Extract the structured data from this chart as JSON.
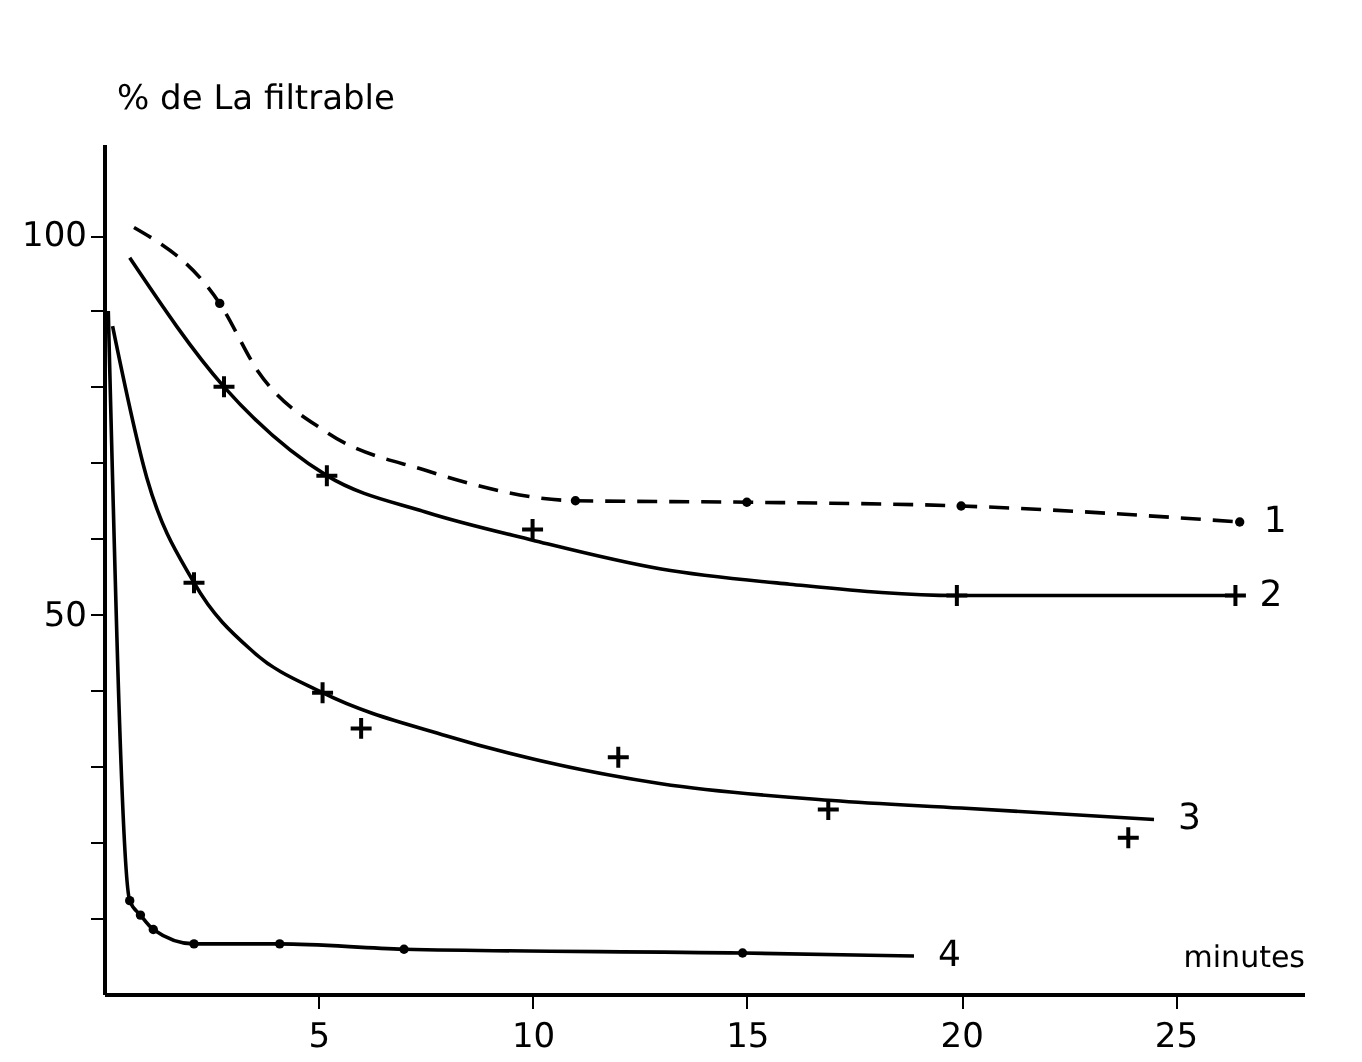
{
  "chart_data": {
    "type": "line",
    "xlabel": "minutes",
    "ylabel": "% de La filtrable",
    "xlim": [
      0,
      28
    ],
    "ylim": [
      0,
      112
    ],
    "xticks": [
      5,
      10,
      15,
      20,
      25
    ],
    "yticks": [
      {
        "value": 10,
        "label": null
      },
      {
        "value": 20,
        "label": null
      },
      {
        "value": 30,
        "label": null
      },
      {
        "value": 40,
        "label": null
      },
      50,
      {
        "value": 60,
        "label": null
      },
      {
        "value": 70,
        "label": null
      },
      {
        "value": 80,
        "label": null
      },
      {
        "value": 90,
        "label": null
      },
      100
    ],
    "grid": false,
    "series": [
      {
        "name": "1",
        "line_style": "dashed",
        "color": "#000000",
        "x": [
          0.7,
          2.7,
          3.6,
          5.2,
          7.5,
          11,
          15,
          20,
          26.5
        ],
        "values": [
          101,
          91,
          82,
          74,
          69,
          65,
          64.8,
          64.3,
          62.2
        ]
      },
      {
        "type": "scatter",
        "marker": "circle",
        "color": "#000000",
        "x": [
          2.7,
          11,
          15,
          20,
          26.5
        ],
        "values": [
          91,
          65,
          64.8,
          64.3,
          62.2
        ]
      },
      {
        "name": "2",
        "line_style": "solid",
        "color": "#000000",
        "x": [
          0.6,
          2.8,
          5.2,
          7.5,
          10,
          13,
          16,
          19.9,
          26.4
        ],
        "values": [
          97,
          80,
          68.3,
          63.5,
          59.8,
          56,
          54,
          52.5,
          52.5
        ]
      },
      {
        "type": "scatter",
        "marker": "cross",
        "color": "#000000",
        "x": [
          2.8,
          5.2,
          10,
          19.9,
          26.4
        ],
        "values": [
          80,
          68.3,
          61.2,
          52.5,
          52.5
        ]
      },
      {
        "name": "3",
        "line_style": "solid",
        "color": "#000000",
        "x": [
          0.2,
          1,
          2.1,
          3.5,
          5.1,
          8,
          13,
          17,
          20,
          24.5
        ],
        "values": [
          88,
          68,
          54.2,
          45,
          39.7,
          34,
          27.7,
          25.5,
          24.5,
          23
        ]
      },
      {
        "type": "scatter",
        "marker": "cross",
        "color": "#000000",
        "x": [
          2.1,
          5.1,
          6,
          12,
          16.9,
          23.9
        ],
        "values": [
          54.2,
          39.7,
          35,
          31.2,
          24.3,
          20.6
        ]
      },
      {
        "name": "4",
        "line_style": "solid",
        "color": "#000000",
        "x": [
          0.1,
          0.6,
          0.85,
          1.15,
          2.1,
          4.1,
          7,
          14.9,
          18.9
        ],
        "values": [
          90,
          12.3,
          10.4,
          8.5,
          6.6,
          6.6,
          5.9,
          5.4,
          5
        ]
      },
      {
        "type": "scatter",
        "marker": "circle",
        "color": "#000000",
        "x": [
          0.6,
          0.85,
          1.15,
          2.1,
          4.1,
          7,
          14.9
        ],
        "values": [
          12.3,
          10.4,
          8.5,
          6.6,
          6.6,
          5.9,
          5.4
        ]
      }
    ]
  }
}
